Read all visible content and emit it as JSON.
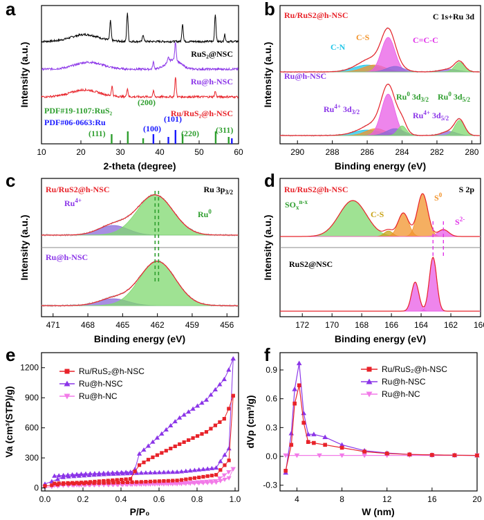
{
  "figure": {
    "panel_letters": [
      "a",
      "b",
      "c",
      "d",
      "e",
      "f"
    ],
    "colors": {
      "red": "#e8232a",
      "purple": "#8b35e8",
      "pink": "#f27ae8",
      "black": "#000000",
      "green": "#2e9e2e",
      "blue": "#1a1aff",
      "cyan": "#21c6e8",
      "orange": "#f2942c",
      "magenta": "#e034e8",
      "olive": "#c8a214",
      "fill_green": "#7fd86f",
      "fill_magenta": "#e85ce6",
      "fill_purple": "#8a6ad8"
    }
  },
  "chart_data": [
    {
      "id": "a",
      "type": "line",
      "title": "",
      "xlabel": "2-theta (degree)",
      "ylabel": "Intensity (a.u.)",
      "xlim": [
        10,
        60
      ],
      "xticks": [
        "10",
        "20",
        "30",
        "40",
        "50",
        "60"
      ],
      "series": [
        {
          "name": "RuS₂@NSC",
          "color": "#000000",
          "broad_center": 21,
          "peaks": [
            27.5,
            31.8,
            35.8,
            45.8,
            54.1,
            56.5
          ]
        },
        {
          "name": "Ru@h-NSC",
          "color": "#8b35e8",
          "broad_center": 22,
          "peaks": [
            38.4,
            42.2,
            44.0
          ]
        },
        {
          "name": "Ru/RuS₂@h-NSC",
          "color": "#e8232a",
          "broad_center": 21,
          "peaks": [
            27.9,
            31.8,
            38.4,
            44.0,
            54.1
          ]
        }
      ],
      "references": [
        {
          "name": "PDF#19-1107:RuS₂",
          "color": "#2e9e2e",
          "positions": [
            27.8,
            31.9,
            35.8,
            45.8,
            54.2,
            57.5
          ]
        },
        {
          "name": "PDF#06-0663:Ru",
          "color": "#1a1aff",
          "positions": [
            38.4,
            42.2,
            44.0,
            58.3
          ]
        }
      ],
      "annotations": [
        "(111)",
        "(200)",
        "(100)",
        "(101)",
        "(220)",
        "(311)"
      ]
    },
    {
      "id": "b",
      "type": "line",
      "title": "C 1s+Ru 3d",
      "xlabel": "Binding energy (eV)",
      "ylabel": "Intensity (a.u.)",
      "xlim": [
        291,
        279.5
      ],
      "xticks": [
        "290",
        "288",
        "286",
        "284",
        "282",
        "280"
      ],
      "samples": [
        "Ru/RuS2@h-NSC",
        "Ru@h-NSC"
      ],
      "components": [
        {
          "name": "C-N",
          "center": 286.0,
          "color": "#21c6e8"
        },
        {
          "name": "C-S",
          "center": 285.6,
          "color": "#f2942c"
        },
        {
          "name": "C=C-C",
          "center": 284.8,
          "color": "#e034e8"
        },
        {
          "name": "Ru⁰ 3d3/2",
          "center": 284.0,
          "color": "#2e9e2e"
        },
        {
          "name": "Ru⁴⁺ 3d3/2",
          "center": 284.4,
          "color": "#8b35e8"
        },
        {
          "name": "Ru⁰ 3d5/2",
          "center": 280.7,
          "color": "#2e9e2e"
        },
        {
          "name": "Ru⁴⁺ 3d5/2",
          "center": 281.3,
          "color": "#8b35e8"
        }
      ],
      "labels": {
        "c_n": "C-N",
        "c_s": "C-S",
        "ccc": "C=C-C",
        "ru0_32_pre": "Ru",
        "ru0_32_sup": "0",
        "ru0_32_post": " 3d",
        "ru0_32_sub": "3/2",
        "ru0_52_pre": "Ru",
        "ru0_52_sup": "0",
        "ru0_52_post": " 3d",
        "ru0_52_sub": "5/2",
        "ru4_32_pre": "Ru",
        "ru4_32_sup": "4+",
        "ru4_32_post": " 3d",
        "ru4_32_sub": "3/2",
        "ru4_52_pre": "Ru",
        "ru4_52_sup": "4+",
        "ru4_52_post": " 3d",
        "ru4_52_sub": "5/2"
      }
    },
    {
      "id": "c",
      "type": "line",
      "title": "Ru 3p3/2",
      "title_parts": {
        "main": "Ru 3p",
        "sub": "3/2"
      },
      "xlabel": "Binding energy (eV)",
      "ylabel": "Intensity (a.u.)",
      "xlim": [
        472,
        455
      ],
      "xticks": [
        "471",
        "468",
        "465",
        "462",
        "459",
        "456"
      ],
      "samples": [
        "Ru/RuS2@h-NSC",
        "Ru@h-NSC"
      ],
      "components": [
        {
          "name": "Ru⁴⁺",
          "center": 465.8,
          "color": "#8b35e8"
        },
        {
          "name": "Ru⁰",
          "center": 462.2,
          "color": "#2e9e2e"
        }
      ],
      "labels": {
        "ru4_pre": "Ru",
        "ru4_sup": "4+",
        "ru0_pre": "Ru",
        "ru0_sup": "0"
      }
    },
    {
      "id": "d",
      "type": "line",
      "title": "S 2p",
      "xlabel": "Binding energy (eV)",
      "ylabel": "Intensity (a.u.)",
      "xlim": [
        173.5,
        160
      ],
      "xticks": [
        "172",
        "170",
        "168",
        "166",
        "164",
        "162",
        "160"
      ],
      "samples": [
        "Ru/RuS2@h-NSC",
        "RuS2@NSC"
      ],
      "components": [
        {
          "name": "SOₓⁿ⁻ˣ",
          "center": 168.6,
          "color": "#2e9e2e"
        },
        {
          "name": "C-S",
          "center": 166.2,
          "color": "#c8a214"
        },
        {
          "name": "S⁰",
          "center": 163.9,
          "color": "#f2942c"
        },
        {
          "name": "S²⁻",
          "center": 162.5,
          "color": "#e034e8"
        }
      ],
      "labels": {
        "sox_pre": "SO",
        "sox_sub": "x",
        "sox_sup": "n-x",
        "cs": "C-S",
        "s0_pre": "S",
        "s0_sup": "0",
        "s2_pre": "S",
        "s2_sup": "2-"
      }
    },
    {
      "id": "e",
      "type": "line",
      "title": "",
      "xlabel": "P/P₀",
      "ylabel": "Va (cm³(STP)/g)",
      "xlim": [
        0,
        1.0
      ],
      "ylim": [
        -30,
        1350
      ],
      "xticks": [
        "0.0",
        "0.2",
        "0.4",
        "0.6",
        "0.8",
        "1.0"
      ],
      "yticks": [
        "0",
        "300",
        "600",
        "900",
        "1200"
      ],
      "series": [
        {
          "name": "Ru/RuS₂@h-NSC",
          "color": "#e8232a",
          "marker": "square",
          "adsorption": [
            [
              0.0,
              20
            ],
            [
              0.1,
              40
            ],
            [
              0.3,
              50
            ],
            [
              0.5,
              60
            ],
            [
              0.7,
              75
            ],
            [
              0.9,
              130
            ],
            [
              0.97,
              280
            ],
            [
              0.99,
              920
            ]
          ],
          "desorption": [
            [
              0.99,
              920
            ],
            [
              0.95,
              700
            ],
            [
              0.85,
              560
            ],
            [
              0.7,
              430
            ],
            [
              0.55,
              290
            ],
            [
              0.49,
              220
            ],
            [
              0.45,
              90
            ],
            [
              0.2,
              55
            ],
            [
              0.05,
              45
            ]
          ]
        },
        {
          "name": "Ru@h-NSC",
          "color": "#8b35e8",
          "marker": "triangle-up",
          "adsorption": [
            [
              0.0,
              40
            ],
            [
              0.1,
              110
            ],
            [
              0.3,
              135
            ],
            [
              0.5,
              150
            ],
            [
              0.7,
              160
            ],
            [
              0.9,
              200
            ],
            [
              0.97,
              400
            ],
            [
              0.99,
              1290
            ]
          ],
          "desorption": [
            [
              0.99,
              1290
            ],
            [
              0.95,
              1100
            ],
            [
              0.85,
              880
            ],
            [
              0.7,
              690
            ],
            [
              0.55,
              430
            ],
            [
              0.49,
              330
            ],
            [
              0.47,
              160
            ],
            [
              0.2,
              140
            ],
            [
              0.05,
              120
            ]
          ]
        },
        {
          "name": "Ru@h-NC",
          "color": "#f27ae8",
          "marker": "triangle-down",
          "adsorption": [
            [
              0.0,
              5
            ],
            [
              0.1,
              25
            ],
            [
              0.3,
              30
            ],
            [
              0.5,
              35
            ],
            [
              0.7,
              40
            ],
            [
              0.9,
              55
            ],
            [
              0.97,
              100
            ],
            [
              0.99,
              190
            ]
          ],
          "desorption": [
            [
              0.99,
              190
            ],
            [
              0.9,
              70
            ],
            [
              0.7,
              45
            ],
            [
              0.5,
              38
            ],
            [
              0.2,
              30
            ],
            [
              0.05,
              25
            ]
          ]
        }
      ]
    },
    {
      "id": "f",
      "type": "line",
      "title": "",
      "xlabel": "W (nm)",
      "ylabel": "dVp (cm³/g)",
      "xlim": [
        2.5,
        20
      ],
      "ylim": [
        -0.36,
        1.08
      ],
      "xticks": [
        "4",
        "8",
        "12",
        "16",
        "20"
      ],
      "yticks": [
        "-0.3",
        "0.0",
        "0.3",
        "0.6",
        "0.9"
      ],
      "series": [
        {
          "name": "Ru/RuS₂@h-NSC",
          "color": "#e8232a",
          "marker": "square",
          "points": [
            [
              3.0,
              -0.15
            ],
            [
              3.5,
              0.12
            ],
            [
              3.8,
              0.55
            ],
            [
              4.2,
              0.74
            ],
            [
              4.6,
              0.35
            ],
            [
              5.0,
              0.15
            ],
            [
              5.5,
              0.14
            ],
            [
              6.5,
              0.12
            ],
            [
              8.0,
              0.09
            ],
            [
              10.0,
              0.05
            ],
            [
              12.0,
              0.03
            ],
            [
              14.0,
              0.02
            ],
            [
              16.0,
              0.015
            ],
            [
              18.0,
              0.012
            ],
            [
              20.0,
              0.01
            ]
          ]
        },
        {
          "name": "Ru@h-NSC",
          "color": "#8b35e8",
          "marker": "triangle-up",
          "points": [
            [
              3.0,
              -0.17
            ],
            [
              3.5,
              0.24
            ],
            [
              3.8,
              0.7
            ],
            [
              4.2,
              0.97
            ],
            [
              4.6,
              0.45
            ],
            [
              5.0,
              0.23
            ],
            [
              5.5,
              0.23
            ],
            [
              6.5,
              0.2
            ],
            [
              8.0,
              0.12
            ],
            [
              10.0,
              0.06
            ],
            [
              12.0,
              0.035
            ],
            [
              14.0,
              0.02
            ],
            [
              16.0,
              0.015
            ],
            [
              18.0,
              0.012
            ],
            [
              20.0,
              0.01
            ]
          ]
        },
        {
          "name": "Ru@h-NC",
          "color": "#f27ae8",
          "marker": "triangle-down",
          "points": [
            [
              3.0,
              0.01
            ],
            [
              4.0,
              0.01
            ],
            [
              6.0,
              0.01
            ],
            [
              8.0,
              0.01
            ],
            [
              10.0,
              0.01
            ],
            [
              12.0,
              0.01
            ],
            [
              14.0,
              0.01
            ],
            [
              16.0,
              0.01
            ],
            [
              18.0,
              0.01
            ],
            [
              20.0,
              0.01
            ]
          ]
        }
      ]
    }
  ]
}
